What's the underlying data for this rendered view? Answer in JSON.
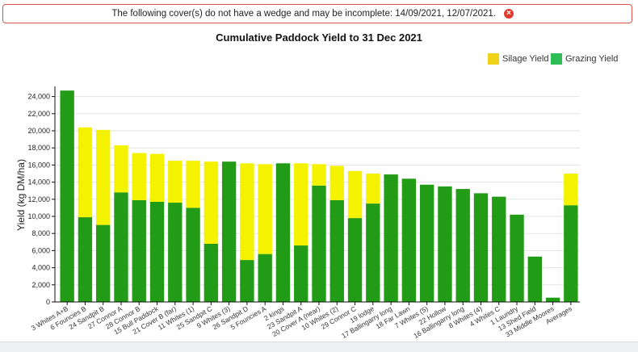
{
  "alert": {
    "message": "The following cover(s) do not have a wedge and may be incomplete: 14/09/2021, 12/07/2021.",
    "close_icon": "close-circle-icon",
    "close_color": "#e03b2f"
  },
  "legend": {
    "silage_label": "Silage Yield",
    "grazing_label": "Grazing Yield"
  },
  "chart_data": {
    "type": "bar",
    "stacked": true,
    "title": "Cumulative Paddock Yield to 31 Dec 2021",
    "xlabel": "",
    "ylabel": "Yield (kg DM/ha)",
    "ylim": [
      0,
      25000
    ],
    "yticks": [
      "0",
      "2,000",
      "4,000",
      "6,000",
      "8,000",
      "10,000",
      "12,000",
      "14,000",
      "16,000",
      "18,000",
      "20,000",
      "22,000",
      "24,000"
    ],
    "ytick_values": [
      0,
      2000,
      4000,
      6000,
      8000,
      10000,
      12000,
      14000,
      16000,
      18000,
      20000,
      22000,
      24000
    ],
    "grid": true,
    "legend_position": "top-right",
    "categories": [
      "3 Whites A+B",
      "6 Founcies B",
      "24 Sandpit B",
      "27 Connor A",
      "28 Connor B",
      "15 Bull Paddock",
      "21 Cover B (far)",
      "11 Whites (1)",
      "25 Sandpit C",
      "9 Whites (3)",
      "26 Sandpit D",
      "5 Founcies A",
      "2 kings",
      "23 Sandpit A",
      "20 Cover A (near)",
      "10 Whites (2)",
      "29 Connor C",
      "19 lodge",
      "17 Ballingarry long",
      "18 Far Lawn",
      "7 Whites (5)",
      "22 Hollow",
      "16 Ballingarry long",
      "8 Whites (4)",
      "4 Whites C",
      "1 Laundry",
      "13 Shed Field",
      "33 Middle Moores",
      "Averages"
    ],
    "series": [
      {
        "name": "Grazing Yield",
        "color": "#229c17",
        "values": [
          24700,
          9900,
          9000,
          12800,
          11900,
          11700,
          11600,
          11000,
          6800,
          16400,
          4900,
          5600,
          16200,
          6600,
          13600,
          11900,
          9800,
          11500,
          14900,
          14400,
          13700,
          13500,
          13200,
          12700,
          12300,
          10200,
          5300,
          500,
          11300
        ]
      },
      {
        "name": "Silage Yield",
        "color": "#f5f200",
        "values": [
          0,
          10500,
          11100,
          5500,
          5500,
          5600,
          4900,
          5500,
          9600,
          0,
          11300,
          10500,
          0,
          9600,
          2500,
          4000,
          5500,
          3500,
          0,
          0,
          0,
          0,
          0,
          0,
          0,
          0,
          0,
          0,
          3700
        ]
      }
    ]
  },
  "colors": {
    "silage": "#f0d21a",
    "grazing": "#2dbd57",
    "axis": "#111111",
    "grid": "#e3e3e3"
  }
}
